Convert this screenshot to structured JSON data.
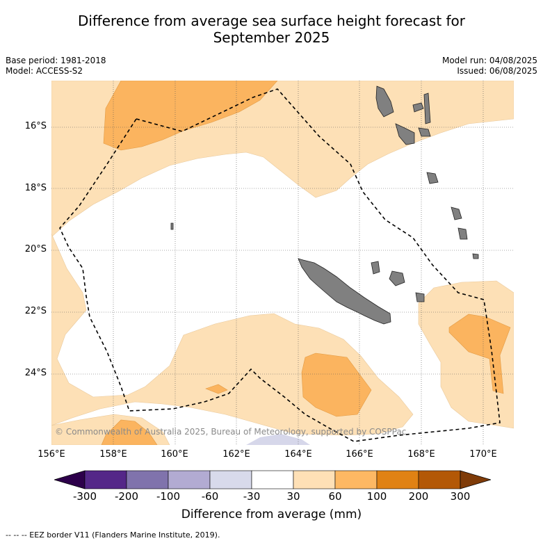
{
  "title_line1": "Difference from average sea surface height forecast for",
  "title_line2": "September 2025",
  "meta_left": {
    "base_period": "Base period: 1981-2018",
    "model": "Model: ACCESS-S2"
  },
  "meta_right": {
    "model_run": "Model run: 04/08/2025",
    "issued": "Issued: 06/08/2025"
  },
  "copyright": "© Commonwealth of Australia 2025, Bureau of Meteorology, supported by COSPPac",
  "map": {
    "lon_range": [
      156.5,
      171.5
    ],
    "lat_range": [
      -26.3,
      -14.5
    ],
    "lat_ticks": [
      -16,
      -18,
      -20,
      -22,
      -24
    ],
    "lat_labels": [
      "16°S",
      "18°S",
      "20°S",
      "22°S",
      "24°S"
    ],
    "lon_ticks": [
      156,
      158,
      160,
      162,
      164,
      166,
      168,
      170
    ],
    "lon_labels": [
      "156°E",
      "158°E",
      "160°E",
      "162°E",
      "164°E",
      "166°E",
      "168°E",
      "170°E"
    ],
    "grid": true,
    "colors": {
      "c30_60": "#fde0b6",
      "c60_100": "#fbb45f",
      "c_neg30_60": "#d6d7ea",
      "land": "#808080"
    }
  },
  "colorbar": {
    "ticks": [
      "-300",
      "-200",
      "-100",
      "-60",
      "-30",
      "30",
      "60",
      "100",
      "200",
      "300"
    ],
    "colors": [
      "#2d004b",
      "#542788",
      "#8073ac",
      "#b2abd2",
      "#d8daeb",
      "#ffffff",
      "#fee0b6",
      "#fdb863",
      "#e08214",
      "#b35806",
      "#7f3b08"
    ],
    "label": "Difference from average (mm)"
  },
  "footnote": "--  --  -- EEZ border V11 (Flanders Marine Institute, 2019)."
}
